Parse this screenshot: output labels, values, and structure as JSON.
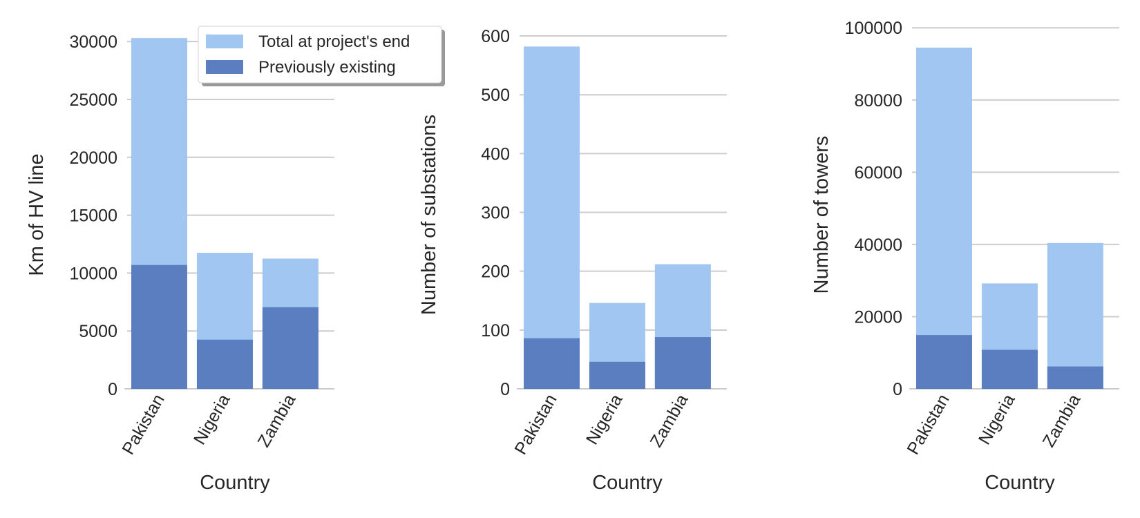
{
  "colors": {
    "total": "#a1c6f1",
    "existing": "#5a7ebf"
  },
  "chart_data": [
    {
      "type": "bar",
      "stacked_overlay": true,
      "categories": [
        "Pakistan",
        "Nigeria",
        "Zambia"
      ],
      "series": [
        {
          "name": "Total at project's end",
          "values": [
            30300,
            11750,
            11250
          ]
        },
        {
          "name": "Previously existing",
          "values": [
            10700,
            4250,
            7050
          ]
        }
      ],
      "xlabel": "Country",
      "ylabel": "Km of HV line",
      "ylim": [
        0,
        31500
      ],
      "yticks": [
        0,
        5000,
        10000,
        15000,
        20000,
        25000,
        30000
      ],
      "grid": "horizontal",
      "legend": "top-right"
    },
    {
      "type": "bar",
      "stacked_overlay": true,
      "categories": [
        "Pakistan",
        "Nigeria",
        "Zambia"
      ],
      "series": [
        {
          "name": "Total at project's end",
          "values": [
            582,
            146,
            212
          ]
        },
        {
          "name": "Previously existing",
          "values": [
            86,
            46,
            88
          ]
        }
      ],
      "xlabel": "Country",
      "ylabel": "Number of substations",
      "ylim": [
        0,
        620
      ],
      "yticks": [
        0,
        100,
        200,
        300,
        400,
        500,
        600
      ],
      "grid": "horizontal"
    },
    {
      "type": "bar",
      "stacked_overlay": true,
      "categories": [
        "Pakistan",
        "Nigeria",
        "Zambia"
      ],
      "series": [
        {
          "name": "Total at project's end",
          "values": [
            94500,
            29200,
            40400
          ]
        },
        {
          "name": "Previously existing",
          "values": [
            14900,
            10800,
            6200
          ]
        }
      ],
      "xlabel": "Country",
      "ylabel": "Number of towers",
      "ylim": [
        0,
        101000
      ],
      "yticks": [
        0,
        20000,
        40000,
        60000,
        80000,
        100000
      ],
      "grid": "horizontal"
    }
  ]
}
